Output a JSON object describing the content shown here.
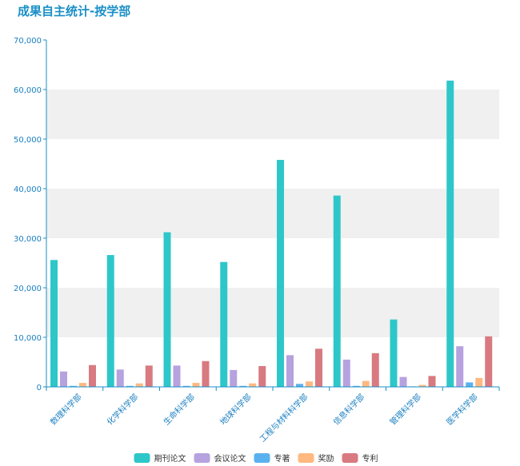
{
  "chart_data": {
    "type": "bar",
    "title": "成果自主统计-按学部",
    "categories": [
      "数理科学部",
      "化学科学部",
      "生命科学部",
      "地球科学部",
      "工程与材料科学部",
      "信息科学部",
      "管理科学部",
      "医学科学部"
    ],
    "series": [
      {
        "name": "期刊论文",
        "color": "#2ec7c9",
        "values": [
          25600,
          26600,
          31200,
          25200,
          45800,
          38600,
          13600,
          61800
        ]
      },
      {
        "name": "会议论文",
        "color": "#b6a2de",
        "values": [
          3100,
          3500,
          4300,
          3400,
          6400,
          5500,
          2000,
          8200
        ]
      },
      {
        "name": "专著",
        "color": "#5ab1ef",
        "values": [
          200,
          200,
          200,
          200,
          600,
          200,
          100,
          900
        ]
      },
      {
        "name": "奖励",
        "color": "#ffb980",
        "values": [
          800,
          700,
          800,
          700,
          1100,
          1200,
          400,
          1800
        ]
      },
      {
        "name": "专利",
        "color": "#d87a80",
        "values": [
          4400,
          4300,
          5200,
          4200,
          7700,
          6800,
          2200,
          10200
        ]
      }
    ],
    "ylim": [
      0,
      70000
    ],
    "yticks": [
      0,
      10000,
      20000,
      30000,
      40000,
      50000,
      60000,
      70000
    ],
    "ytick_labels": [
      "0",
      "10,000",
      "20,000",
      "30,000",
      "40,000",
      "50,000",
      "60,000",
      "70,000"
    ],
    "xlabel": "",
    "ylabel": "",
    "legend_position": "bottom-center",
    "grid": "alternating bands"
  }
}
